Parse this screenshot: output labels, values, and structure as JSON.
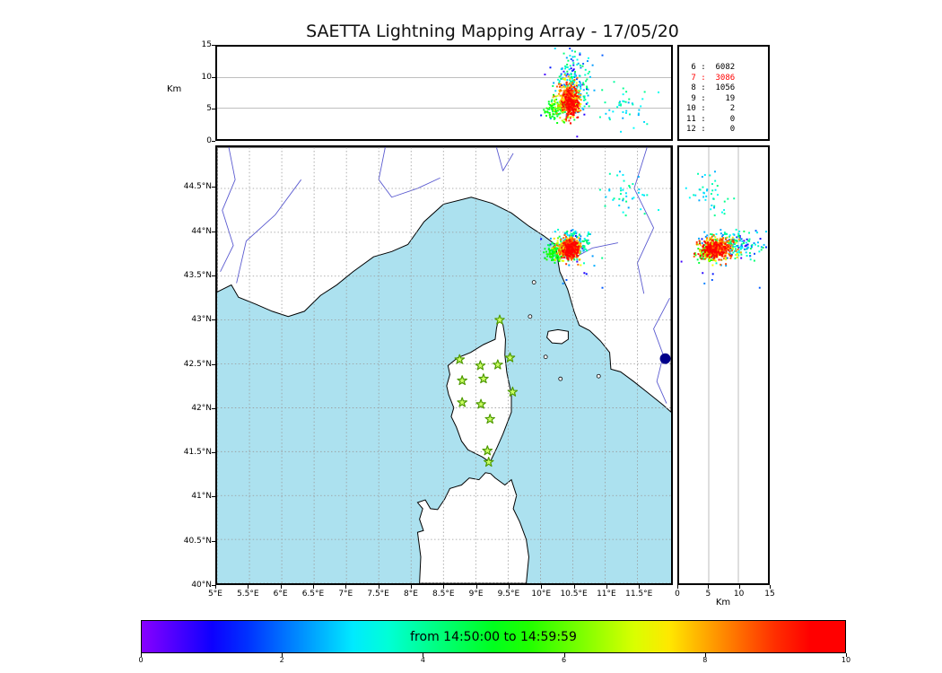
{
  "title": "SAETTA Lightning Mapping Array - 17/05/20",
  "panels": {
    "altitude_label": "Km",
    "km_axis_label": "Km"
  },
  "stats": {
    "rows": [
      {
        "key": "6",
        "value": "6082",
        "highlight": false
      },
      {
        "key": "7",
        "value": "3086",
        "highlight": true
      },
      {
        "key": "8",
        "value": "1056",
        "highlight": false
      },
      {
        "key": "9",
        "value": "19",
        "highlight": false
      },
      {
        "key": "10",
        "value": "2",
        "highlight": false
      },
      {
        "key": "11",
        "value": "0",
        "highlight": false
      },
      {
        "key": "12",
        "value": "0",
        "highlight": false
      }
    ]
  },
  "colorbar": {
    "label": "from 14:50:00 to 14:59:59",
    "min": 0,
    "max": 10,
    "ticks": [
      0,
      2,
      4,
      6,
      8,
      10
    ],
    "colormap": "rainbow"
  },
  "colors": {
    "sea": "#ace1ef",
    "land": "#ffffff",
    "coast": "#000000",
    "grid": "#999999",
    "river": "#5a5ad0",
    "panel_gridline": "#aaaaaa",
    "star_fill": "#ccff66",
    "star_edge": "#4f9b00",
    "lake": "#00008b",
    "stats_highlight": "#ff0000"
  },
  "chart_data": {
    "type": "scatter",
    "title": "SAETTA Lightning Mapping Array - 17/05/20",
    "time_window": {
      "start": "14:50:00",
      "end": "14:59:59"
    },
    "axes": {
      "lon_min": 5.0,
      "lon_max": 12.02,
      "lat_min": 40.0,
      "lat_max": 44.97,
      "alt_min": 0,
      "alt_max": 15,
      "alt_ticks": [
        0,
        5,
        10,
        15
      ],
      "alt_gridlines": [
        5,
        10
      ],
      "lon_ticks": [
        {
          "v": 5.0,
          "label": "5°E"
        },
        {
          "v": 5.5,
          "label": "5.5°E"
        },
        {
          "v": 6.0,
          "label": "6°E"
        },
        {
          "v": 6.5,
          "label": "6.5°E"
        },
        {
          "v": 7.0,
          "label": "7°E"
        },
        {
          "v": 7.5,
          "label": "7.5°E"
        },
        {
          "v": 8.0,
          "label": "8°E"
        },
        {
          "v": 8.5,
          "label": "8.5°E"
        },
        {
          "v": 9.0,
          "label": "9°E"
        },
        {
          "v": 9.5,
          "label": "9.5°E"
        },
        {
          "v": 10.0,
          "label": "10°E"
        },
        {
          "v": 10.5,
          "label": "10.5°E"
        },
        {
          "v": 11.0,
          "label": "11°E"
        },
        {
          "v": 11.5,
          "label": "11.5°E"
        }
      ],
      "lat_ticks": [
        {
          "v": 44.5,
          "label": "44.5°N"
        },
        {
          "v": 44.0,
          "label": "44°N"
        },
        {
          "v": 43.5,
          "label": "43.5°N"
        },
        {
          "v": 43.0,
          "label": "43°N"
        },
        {
          "v": 42.5,
          "label": "42.5°N"
        },
        {
          "v": 42.0,
          "label": "42°N"
        },
        {
          "v": 41.5,
          "label": "41.5°N"
        },
        {
          "v": 41.0,
          "label": "41°N"
        },
        {
          "v": 40.5,
          "label": "40.5°N"
        },
        {
          "v": 40.0,
          "label": "40°N"
        }
      ]
    },
    "source_counts_by_min_stations": {
      "6": 6082,
      "7": 3086,
      "8": 1056,
      "9": 19,
      "10": 2,
      "11": 0,
      "12": 0
    },
    "storm_clusters": [
      {
        "name": "early-blue-high",
        "n": 35,
        "lon": [
          10.48,
          0.16
        ],
        "lat": [
          43.88,
          0.1
        ],
        "alt": [
          10.2,
          2.0
        ],
        "t": [
          0.3,
          2.0
        ]
      },
      {
        "name": "outliers-blue",
        "n": 12,
        "lon": [
          10.4,
          0.3
        ],
        "lat": [
          43.6,
          0.25
        ],
        "alt": [
          7.0,
          3.0
        ],
        "t": [
          0.5,
          2.5
        ]
      },
      {
        "name": "cyan-mid",
        "n": 150,
        "lon": [
          10.52,
          0.13
        ],
        "lat": [
          43.86,
          0.09
        ],
        "alt": [
          9.0,
          2.3
        ],
        "t": [
          2.2,
          4.6
        ]
      },
      {
        "name": "ne-sparse-cyan",
        "n": 40,
        "lon": [
          11.3,
          0.2
        ],
        "lat": [
          44.4,
          0.15
        ],
        "alt": [
          5.0,
          1.6
        ],
        "t": [
          2.4,
          4.2
        ]
      },
      {
        "name": "green-west",
        "n": 90,
        "lon": [
          10.23,
          0.08
        ],
        "lat": [
          43.77,
          0.05
        ],
        "alt": [
          4.8,
          0.9
        ],
        "t": [
          4.4,
          5.6
        ]
      },
      {
        "name": "yellow-mid",
        "n": 60,
        "lon": [
          10.36,
          0.09
        ],
        "lat": [
          43.8,
          0.06
        ],
        "alt": [
          5.6,
          1.1
        ],
        "t": [
          5.6,
          7.0
        ]
      },
      {
        "name": "orange-core",
        "n": 300,
        "lon": [
          10.45,
          0.08
        ],
        "lat": [
          43.82,
          0.06
        ],
        "alt": [
          6.4,
          1.4
        ],
        "t": [
          7.0,
          9.0
        ]
      },
      {
        "name": "red-core",
        "n": 160,
        "lon": [
          10.47,
          0.06
        ],
        "lat": [
          43.8,
          0.05
        ],
        "alt": [
          5.9,
          1.2
        ],
        "t": [
          9.0,
          10.0
        ]
      }
    ],
    "stations_lonlat": [
      [
        9.37,
        43.0
      ],
      [
        8.75,
        42.55
      ],
      [
        9.07,
        42.48
      ],
      [
        9.34,
        42.49
      ],
      [
        9.53,
        42.57
      ],
      [
        8.79,
        42.31
      ],
      [
        9.12,
        42.33
      ],
      [
        9.57,
        42.18
      ],
      [
        8.79,
        42.06
      ],
      [
        9.08,
        42.04
      ],
      [
        9.22,
        41.87
      ],
      [
        9.18,
        41.51
      ],
      [
        9.2,
        41.38
      ]
    ],
    "lake_marker": {
      "lon": 11.93,
      "lat": 42.56
    }
  }
}
